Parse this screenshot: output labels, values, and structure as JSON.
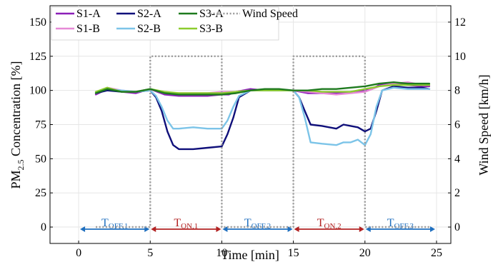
{
  "chart_data": {
    "type": "line",
    "xlabel": "Time [min]",
    "ylabel_prefix": "PM",
    "ylabel_sub": "2.5",
    "ylabel_suffix": " Concentration [%]",
    "y2label": "Wind Speed [km/h]",
    "xlim": [
      -2,
      26
    ],
    "ylim": [
      -12,
      162
    ],
    "y2lim": [
      -0.96,
      12.96
    ],
    "xticks": [
      0,
      5,
      10,
      15,
      20,
      25
    ],
    "yticks": [
      0,
      25,
      50,
      75,
      100,
      125,
      150
    ],
    "y2ticks": [
      0,
      2,
      4,
      6,
      8,
      10,
      12
    ],
    "grid": true,
    "legend_position": "top-left",
    "series": [
      {
        "name": "S1-A",
        "color": "#8b1fb8",
        "width": 2.4,
        "dash": "",
        "x": [
          1.2,
          2,
          3,
          4,
          5,
          5.5,
          6,
          7,
          8,
          9,
          10,
          10.5,
          11,
          12,
          13,
          14,
          15,
          15.5,
          16,
          17,
          18,
          19,
          20,
          20.5,
          21,
          22,
          23,
          24,
          24.5
        ],
        "y": [
          97,
          101,
          99,
          98,
          101,
          99,
          97,
          96,
          96,
          96,
          97,
          97,
          99,
          101,
          100,
          100,
          100,
          99,
          98,
          98,
          98,
          99,
          100,
          101,
          104,
          105,
          104,
          103,
          103
        ]
      },
      {
        "name": "S2-A",
        "color": "#0f0f7a",
        "width": 2.4,
        "dash": "",
        "x": [
          1.2,
          2,
          3,
          4,
          5,
          5.4,
          5.8,
          6.2,
          6.6,
          7,
          8,
          9,
          10,
          10.4,
          10.8,
          11.2,
          12,
          13,
          14,
          15,
          15.4,
          15.8,
          16.2,
          17,
          18,
          18.5,
          19,
          19.5,
          20,
          20.4,
          20.8,
          21.2,
          22,
          23,
          24,
          24.5
        ],
        "y": [
          98,
          100,
          99,
          99,
          100,
          95,
          85,
          70,
          60,
          57,
          57,
          58,
          59,
          68,
          80,
          95,
          100,
          100,
          100,
          100,
          95,
          85,
          75,
          74,
          72,
          75,
          74,
          73,
          70,
          72,
          85,
          100,
          103,
          102,
          102,
          101
        ]
      },
      {
        "name": "S3-A",
        "color": "#1e7a1e",
        "width": 2.4,
        "dash": "",
        "x": [
          1.2,
          2,
          3,
          4,
          5,
          6,
          7,
          8,
          9,
          10,
          11,
          12,
          13,
          14,
          15,
          16,
          17,
          18,
          19,
          20,
          21,
          22,
          23,
          24,
          24.5
        ],
        "y": [
          98,
          101,
          99,
          99,
          101,
          98,
          97,
          97,
          97,
          97,
          98,
          100,
          101,
          101,
          100,
          100,
          101,
          101,
          102,
          103,
          105,
          106,
          105,
          105,
          105
        ],
        "zorder": 3
      },
      {
        "name": "S1-B",
        "color": "#e68ad6",
        "width": 2.4,
        "dash": "",
        "x": [
          1.2,
          2,
          3,
          4,
          5,
          6,
          7,
          8,
          9,
          10,
          11,
          12,
          13,
          14,
          15,
          16,
          17,
          18,
          19,
          20,
          21,
          22,
          23,
          24,
          24.5
        ],
        "y": [
          98,
          102,
          100,
          99,
          101,
          98,
          98,
          98,
          98,
          99,
          99,
          100,
          100,
          100,
          100,
          99,
          98,
          97,
          98,
          99,
          103,
          105,
          106,
          104,
          104
        ]
      },
      {
        "name": "S2-B",
        "color": "#7cc4e8",
        "width": 2.4,
        "dash": "",
        "x": [
          1.2,
          2,
          3,
          4,
          5,
          5.4,
          5.8,
          6.2,
          6.6,
          7,
          8,
          9,
          10,
          10.4,
          10.8,
          11.2,
          12,
          13,
          14,
          15,
          15.4,
          15.8,
          16.2,
          17,
          18,
          18.5,
          19,
          19.5,
          20,
          20.4,
          20.8,
          21.2,
          22,
          23,
          24,
          24.5
        ],
        "y": [
          99,
          101,
          100,
          99,
          100,
          96,
          88,
          78,
          72,
          72,
          73,
          72,
          72,
          78,
          88,
          96,
          100,
          100,
          100,
          100,
          95,
          80,
          62,
          61,
          60,
          62,
          62,
          64,
          60,
          68,
          88,
          100,
          102,
          101,
          101,
          101
        ]
      },
      {
        "name": "S3-B",
        "color": "#8ccc2e",
        "width": 2.4,
        "dash": "",
        "x": [
          1.2,
          2,
          3,
          4,
          5,
          6,
          7,
          8,
          9,
          10,
          11,
          12,
          13,
          14,
          15,
          16,
          17,
          18,
          19,
          20,
          21,
          22,
          23,
          24,
          24.5
        ],
        "y": [
          99,
          102,
          99,
          99,
          101,
          99,
          98,
          98,
          98,
          98,
          99,
          100,
          100,
          100,
          100,
          100,
          99,
          99,
          99,
          101,
          103,
          104,
          104,
          104,
          104
        ]
      },
      {
        "name": "Wind Speed",
        "color": "#999999",
        "width": 2.4,
        "dash": "2,2.6",
        "axis": "right",
        "x": [
          1.2,
          5,
          5,
          10,
          10,
          15,
          15,
          20,
          20,
          24.5
        ],
        "y": [
          0,
          0,
          10,
          10,
          0,
          0,
          10,
          10,
          0,
          0
        ]
      }
    ],
    "intervals": [
      {
        "main": "T",
        "sub": "OFF,1",
        "from": 0.1,
        "to": 4.95,
        "color": "#1f6fbf"
      },
      {
        "main": "T",
        "sub": "ON,1",
        "from": 5.05,
        "to": 9.95,
        "color": "#b22222"
      },
      {
        "main": "T",
        "sub": "OFF,2",
        "from": 10.05,
        "to": 14.95,
        "color": "#1f6fbf"
      },
      {
        "main": "T",
        "sub": "ON,2",
        "from": 15.05,
        "to": 19.95,
        "color": "#b22222"
      },
      {
        "main": "T",
        "sub": "OFF,3",
        "from": 20.05,
        "to": 24.9,
        "color": "#1f6fbf"
      }
    ]
  }
}
